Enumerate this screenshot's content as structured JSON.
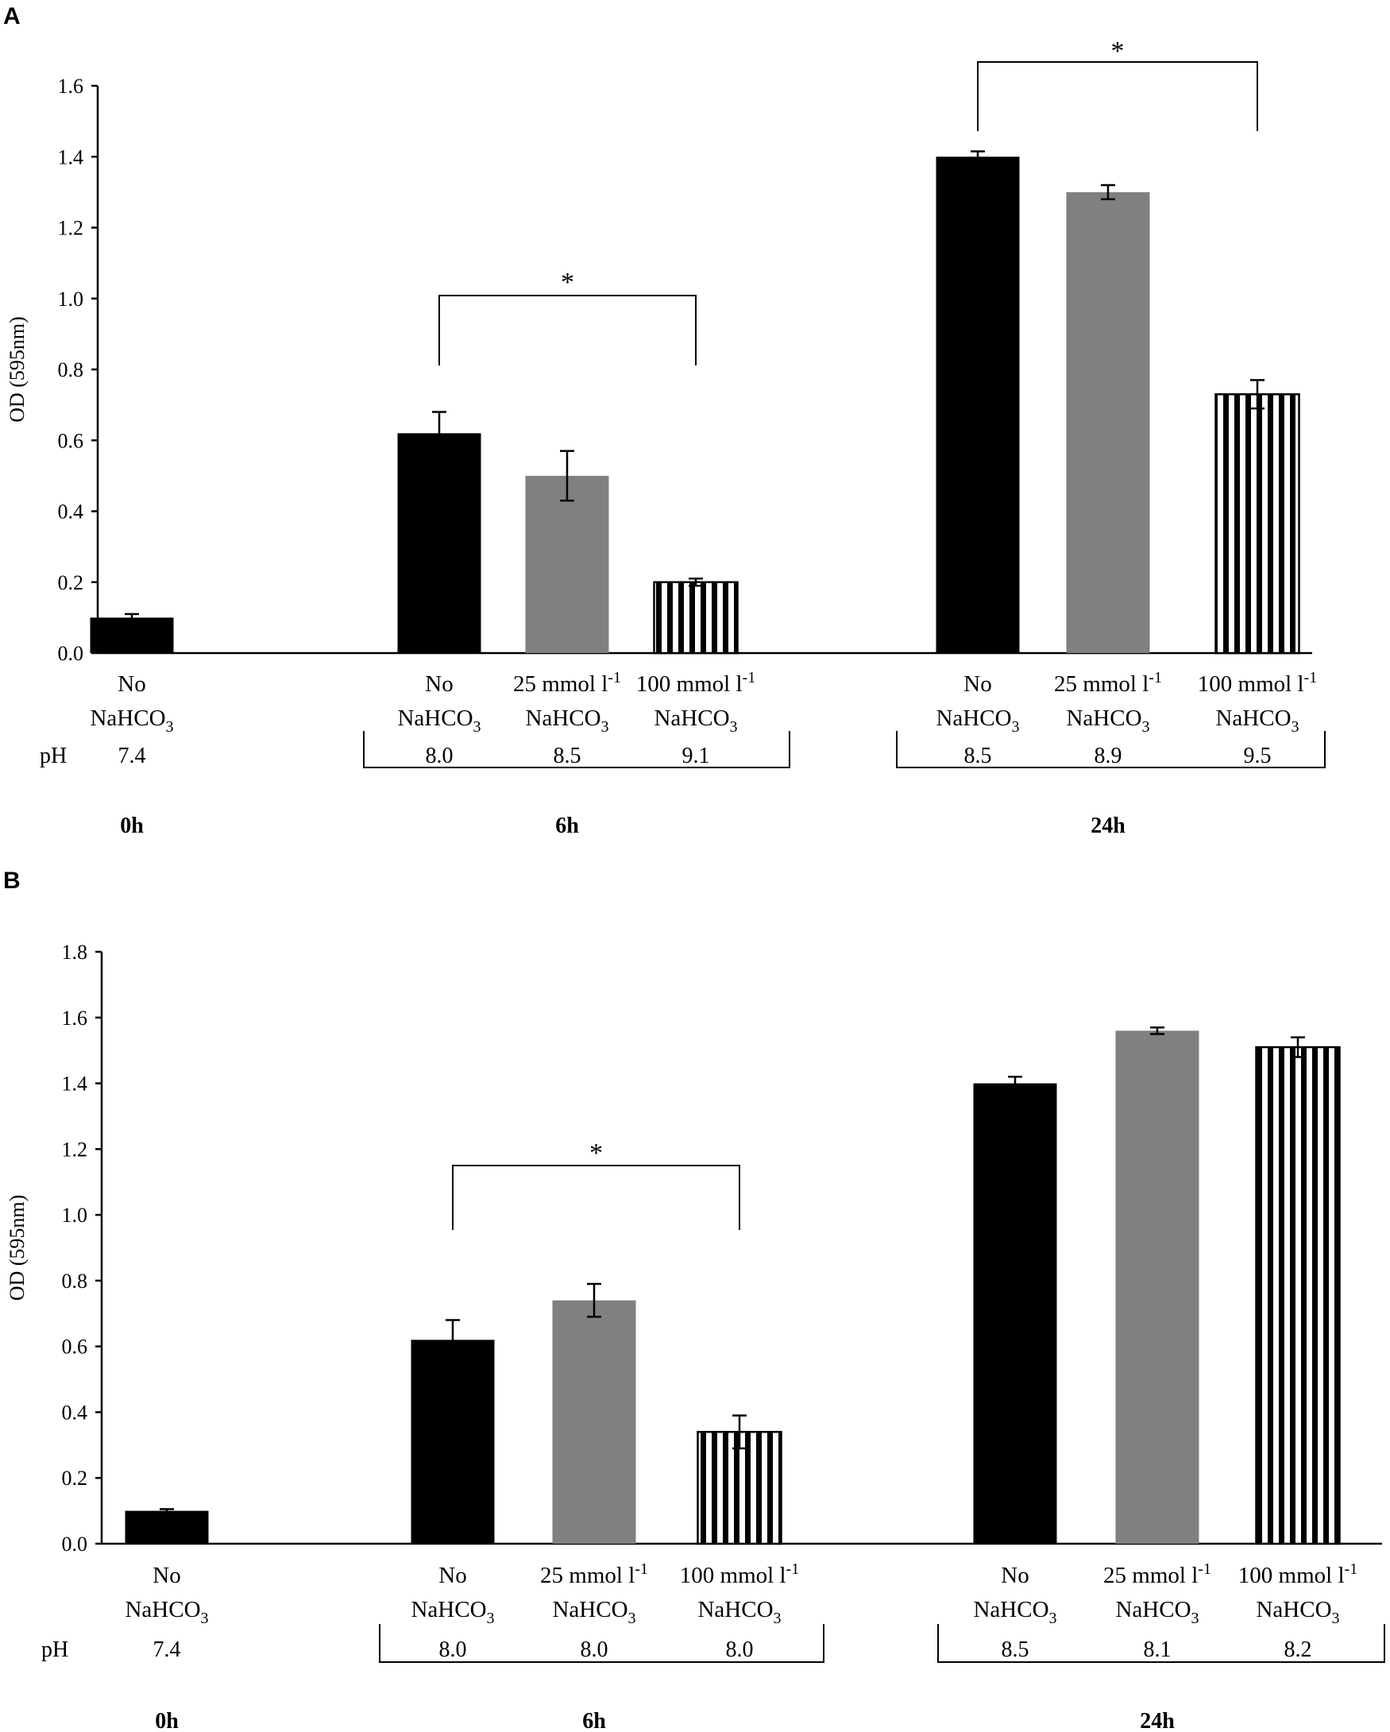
{
  "chart_data": [
    {
      "panel": "A",
      "type": "bar",
      "ylabel": "OD (595nm)",
      "ylim": [
        0.0,
        1.6
      ],
      "yticks": [
        "0.0",
        "0.2",
        "0.4",
        "0.6",
        "0.8",
        "1.0",
        "1.2",
        "1.4",
        "1.6"
      ],
      "ph_label": "pH",
      "groups": [
        {
          "time": "0h",
          "bars": [
            {
              "line1": "No",
              "line2": "NaHCO",
              "sub": "3",
              "sup": "",
              "ph": "7.4",
              "value": 0.1,
              "error": 0.01,
              "fill": "black"
            }
          ]
        },
        {
          "time": "6h",
          "bars": [
            {
              "line1": "No",
              "line2": "NaHCO",
              "sub": "3",
              "sup": "",
              "ph": "8.0",
              "value": 0.62,
              "error": 0.06,
              "fill": "black"
            },
            {
              "line1": "25 mmol l",
              "line2": "NaHCO",
              "sub": "3",
              "sup": "-1",
              "ph": "8.5",
              "value": 0.5,
              "error": 0.07,
              "fill": "gray"
            },
            {
              "line1": "100 mmol l",
              "line2": "NaHCO",
              "sub": "3",
              "sup": "-1",
              "ph": "9.1",
              "value": 0.2,
              "error": 0.01,
              "fill": "stripes"
            }
          ],
          "significance": {
            "from": 0,
            "to": 2,
            "label": "*"
          }
        },
        {
          "time": "24h",
          "bars": [
            {
              "line1": "No",
              "line2": "NaHCO",
              "sub": "3",
              "sup": "",
              "ph": "8.5",
              "value": 1.4,
              "error": 0.015,
              "fill": "black"
            },
            {
              "line1": "25 mmol l",
              "line2": "NaHCO",
              "sub": "3",
              "sup": "-1",
              "ph": "8.9",
              "value": 1.3,
              "error": 0.02,
              "fill": "gray"
            },
            {
              "line1": "100 mmol l",
              "line2": "NaHCO",
              "sub": "3",
              "sup": "-1",
              "ph": "9.5",
              "value": 0.73,
              "error": 0.04,
              "fill": "stripes"
            }
          ],
          "significance": {
            "from": 0,
            "to": 2,
            "label": "*"
          }
        }
      ]
    },
    {
      "panel": "B",
      "type": "bar",
      "ylabel": "OD (595nm)",
      "ylim": [
        0.0,
        1.8
      ],
      "yticks": [
        "0.0",
        "0.2",
        "0.4",
        "0.6",
        "0.8",
        "1.0",
        "1.2",
        "1.4",
        "1.6",
        "1.8"
      ],
      "ph_label": "pH",
      "groups": [
        {
          "time": "0h",
          "bars": [
            {
              "line1": "No",
              "line2": "NaHCO",
              "sub": "3",
              "sup": "",
              "ph": "7.4",
              "value": 0.1,
              "error": 0.005,
              "fill": "black"
            }
          ]
        },
        {
          "time": "6h",
          "bars": [
            {
              "line1": "No",
              "line2": "NaHCO",
              "sub": "3",
              "sup": "",
              "ph": "8.0",
              "value": 0.62,
              "error": 0.06,
              "fill": "black"
            },
            {
              "line1": "25 mmol l",
              "line2": "NaHCO",
              "sub": "3",
              "sup": "-1",
              "ph": "8.0",
              "value": 0.74,
              "error": 0.05,
              "fill": "gray"
            },
            {
              "line1": "100 mmol l",
              "line2": "NaHCO",
              "sub": "3",
              "sup": "-1",
              "ph": "8.0",
              "value": 0.34,
              "error": 0.05,
              "fill": "stripes"
            }
          ],
          "significance": {
            "from": 0,
            "to": 2,
            "label": "*"
          }
        },
        {
          "time": "24h",
          "bars": [
            {
              "line1": "No",
              "line2": "NaHCO",
              "sub": "3",
              "sup": "",
              "ph": "8.5",
              "value": 1.4,
              "error": 0.02,
              "fill": "black"
            },
            {
              "line1": "25 mmol l",
              "line2": "NaHCO",
              "sub": "3",
              "sup": "-1",
              "ph": "8.1",
              "value": 1.56,
              "error": 0.01,
              "fill": "gray"
            },
            {
              "line1": "100 mmol l",
              "line2": "NaHCO",
              "sub": "3",
              "sup": "-1",
              "ph": "8.2",
              "value": 1.51,
              "error": 0.03,
              "fill": "stripes"
            }
          ]
        }
      ]
    }
  ],
  "colors": {
    "black": "#000000",
    "gray": "#808080",
    "stripe": "#000000",
    "background": "#ffffff"
  }
}
